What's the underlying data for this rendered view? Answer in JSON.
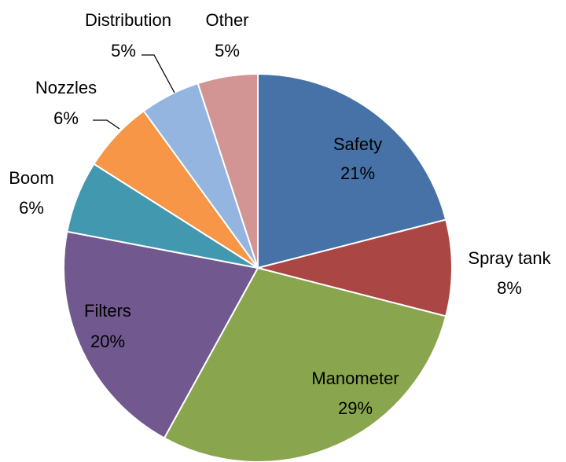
{
  "chart_data": {
    "type": "pie",
    "categories": [
      "Safety",
      "Spray tank",
      "Manometer",
      "Filters",
      "Boom",
      "Nozzles",
      "Distribution",
      "Other"
    ],
    "values": [
      21,
      8,
      29,
      20,
      6,
      6,
      5,
      5
    ],
    "value_labels": [
      "21%",
      "8%",
      "29%",
      "20%",
      "6%",
      "6%",
      "5%",
      "5%"
    ],
    "colors": [
      "#4672a8",
      "#aa4643",
      "#89a54e",
      "#71588f",
      "#4198af",
      "#f79646",
      "#93b5e0",
      "#d39593"
    ]
  }
}
